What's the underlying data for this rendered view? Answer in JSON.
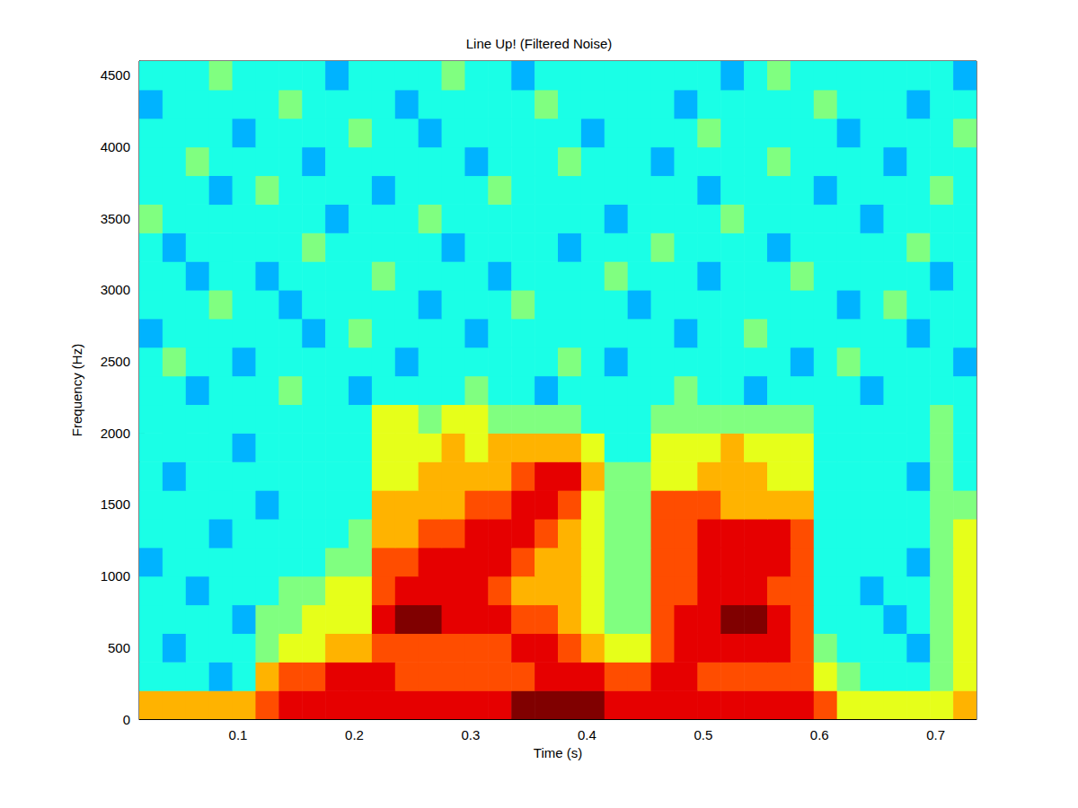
{
  "chart_data": {
    "type": "heatmap",
    "title": "Line Up! (Filtered Noise)",
    "xlabel": "Time (s)",
    "ylabel": "Frequency (Hz)",
    "x": [
      0.025,
      0.045,
      0.065,
      0.085,
      0.105,
      0.125,
      0.145,
      0.165,
      0.185,
      0.205,
      0.225,
      0.245,
      0.265,
      0.285,
      0.305,
      0.325,
      0.345,
      0.365,
      0.385,
      0.405,
      0.425,
      0.445,
      0.465,
      0.485,
      0.505,
      0.525,
      0.545,
      0.565,
      0.585,
      0.605,
      0.625,
      0.645,
      0.665,
      0.685,
      0.705,
      0.725
    ],
    "y": [
      100,
      300,
      500,
      700,
      900,
      1100,
      1300,
      1500,
      1700,
      1900,
      2100,
      2300,
      2500,
      2700,
      2900,
      3100,
      3300,
      3500,
      3700,
      3900,
      4100,
      4300,
      4500
    ],
    "cells": [
      [
        7,
        7,
        7,
        7,
        7,
        8,
        9,
        9,
        9,
        9,
        9,
        9,
        9,
        9,
        9,
        9,
        10,
        10,
        10,
        10,
        9,
        9,
        9,
        9,
        9,
        9,
        9,
        9,
        9,
        8,
        6,
        6,
        6,
        6,
        6,
        7
      ],
      [
        4,
        4,
        4,
        3,
        4,
        7,
        8,
        8,
        9,
        9,
        9,
        8,
        8,
        8,
        8,
        8,
        8,
        9,
        9,
        9,
        8,
        8,
        9,
        9,
        8,
        8,
        8,
        8,
        8,
        6,
        5,
        4,
        4,
        4,
        5,
        6
      ],
      [
        4,
        3,
        4,
        4,
        4,
        5,
        6,
        6,
        7,
        7,
        8,
        8,
        8,
        8,
        8,
        8,
        9,
        9,
        8,
        7,
        6,
        6,
        8,
        9,
        9,
        9,
        9,
        9,
        8,
        5,
        4,
        4,
        4,
        3,
        5,
        6
      ],
      [
        4,
        4,
        4,
        4,
        3,
        5,
        5,
        6,
        6,
        6,
        9,
        10,
        10,
        9,
        9,
        9,
        8,
        8,
        7,
        6,
        5,
        5,
        8,
        9,
        9,
        10,
        10,
        9,
        8,
        4,
        4,
        4,
        3,
        4,
        5,
        6
      ],
      [
        4,
        4,
        3,
        4,
        4,
        4,
        5,
        5,
        6,
        6,
        8,
        9,
        9,
        9,
        9,
        8,
        7,
        7,
        7,
        6,
        5,
        5,
        8,
        8,
        9,
        9,
        9,
        8,
        8,
        4,
        4,
        3,
        4,
        4,
        5,
        6
      ],
      [
        3,
        4,
        4,
        4,
        4,
        4,
        4,
        4,
        5,
        5,
        8,
        8,
        9,
        9,
        9,
        9,
        8,
        7,
        7,
        6,
        5,
        5,
        8,
        8,
        9,
        9,
        9,
        9,
        8,
        4,
        4,
        4,
        4,
        3,
        5,
        6
      ],
      [
        4,
        4,
        4,
        3,
        4,
        4,
        4,
        4,
        4,
        5,
        7,
        7,
        8,
        8,
        9,
        9,
        9,
        8,
        7,
        6,
        5,
        5,
        8,
        8,
        9,
        9,
        9,
        9,
        8,
        4,
        4,
        4,
        4,
        4,
        5,
        6
      ],
      [
        4,
        4,
        4,
        4,
        4,
        3,
        4,
        4,
        4,
        4,
        7,
        7,
        7,
        7,
        8,
        8,
        9,
        9,
        8,
        6,
        5,
        5,
        8,
        8,
        8,
        7,
        7,
        7,
        7,
        4,
        4,
        4,
        4,
        4,
        5,
        5
      ],
      [
        4,
        3,
        4,
        4,
        4,
        4,
        4,
        4,
        4,
        4,
        6,
        6,
        7,
        7,
        7,
        7,
        8,
        9,
        9,
        7,
        5,
        5,
        6,
        6,
        7,
        7,
        7,
        6,
        6,
        4,
        4,
        4,
        4,
        3,
        5,
        4
      ],
      [
        4,
        4,
        4,
        4,
        3,
        4,
        4,
        4,
        4,
        4,
        6,
        6,
        6,
        7,
        6,
        7,
        7,
        7,
        7,
        6,
        4,
        4,
        6,
        6,
        6,
        7,
        6,
        6,
        6,
        4,
        4,
        4,
        4,
        4,
        5,
        4
      ],
      [
        4,
        4,
        4,
        4,
        4,
        4,
        4,
        4,
        4,
        4,
        6,
        6,
        5,
        6,
        6,
        5,
        5,
        5,
        5,
        4,
        4,
        4,
        5,
        5,
        5,
        5,
        5,
        5,
        5,
        4,
        4,
        4,
        4,
        4,
        5,
        4
      ],
      [
        4,
        4,
        3,
        4,
        4,
        4,
        5,
        4,
        4,
        3,
        4,
        4,
        4,
        4,
        5,
        4,
        4,
        3,
        4,
        4,
        4,
        4,
        4,
        5,
        4,
        4,
        3,
        4,
        4,
        4,
        4,
        3,
        4,
        4,
        4,
        4
      ],
      [
        4,
        5,
        4,
        4,
        3,
        4,
        4,
        4,
        4,
        4,
        4,
        3,
        4,
        4,
        4,
        4,
        4,
        4,
        5,
        4,
        3,
        4,
        4,
        4,
        4,
        4,
        4,
        4,
        3,
        4,
        5,
        4,
        4,
        4,
        4,
        3
      ],
      [
        3,
        4,
        4,
        4,
        4,
        4,
        4,
        3,
        4,
        5,
        4,
        4,
        4,
        4,
        3,
        4,
        4,
        4,
        4,
        4,
        4,
        4,
        4,
        3,
        4,
        4,
        5,
        4,
        4,
        4,
        4,
        4,
        4,
        3,
        4,
        4
      ],
      [
        4,
        4,
        4,
        5,
        4,
        4,
        3,
        4,
        4,
        4,
        4,
        4,
        3,
        4,
        4,
        4,
        5,
        4,
        4,
        4,
        4,
        3,
        4,
        4,
        4,
        4,
        4,
        4,
        4,
        4,
        3,
        4,
        5,
        4,
        4,
        4
      ],
      [
        4,
        4,
        3,
        4,
        4,
        3,
        4,
        4,
        4,
        4,
        5,
        4,
        4,
        4,
        4,
        3,
        4,
        4,
        4,
        4,
        5,
        4,
        4,
        4,
        3,
        4,
        4,
        4,
        5,
        4,
        4,
        4,
        4,
        4,
        3,
        4
      ],
      [
        4,
        3,
        4,
        4,
        4,
        4,
        4,
        5,
        4,
        4,
        4,
        4,
        4,
        3,
        4,
        4,
        4,
        4,
        3,
        4,
        4,
        4,
        5,
        4,
        4,
        4,
        4,
        3,
        4,
        4,
        4,
        4,
        4,
        5,
        4,
        4
      ],
      [
        5,
        4,
        4,
        4,
        4,
        4,
        4,
        4,
        3,
        4,
        4,
        4,
        5,
        4,
        4,
        4,
        4,
        4,
        4,
        4,
        3,
        4,
        4,
        4,
        4,
        5,
        4,
        4,
        4,
        4,
        4,
        3,
        4,
        4,
        4,
        4
      ],
      [
        4,
        4,
        4,
        3,
        4,
        5,
        4,
        4,
        4,
        4,
        3,
        4,
        4,
        4,
        4,
        5,
        4,
        4,
        4,
        4,
        4,
        4,
        4,
        4,
        3,
        4,
        4,
        4,
        4,
        3,
        4,
        4,
        4,
        4,
        5,
        4
      ],
      [
        4,
        4,
        5,
        4,
        4,
        4,
        4,
        3,
        4,
        4,
        4,
        4,
        4,
        4,
        3,
        4,
        4,
        4,
        5,
        4,
        4,
        4,
        3,
        4,
        4,
        4,
        4,
        5,
        4,
        4,
        4,
        4,
        3,
        4,
        4,
        4
      ],
      [
        4,
        4,
        4,
        4,
        3,
        4,
        4,
        4,
        4,
        5,
        4,
        4,
        3,
        4,
        4,
        4,
        4,
        4,
        4,
        3,
        4,
        4,
        4,
        4,
        5,
        4,
        4,
        4,
        4,
        4,
        3,
        4,
        4,
        4,
        4,
        5
      ],
      [
        3,
        4,
        4,
        4,
        4,
        4,
        5,
        4,
        4,
        4,
        4,
        3,
        4,
        4,
        4,
        4,
        4,
        5,
        4,
        4,
        4,
        4,
        4,
        3,
        4,
        4,
        4,
        4,
        4,
        5,
        4,
        4,
        4,
        3,
        4,
        4
      ],
      [
        4,
        4,
        4,
        5,
        4,
        4,
        4,
        4,
        3,
        4,
        4,
        4,
        4,
        5,
        4,
        4,
        3,
        4,
        4,
        4,
        4,
        4,
        4,
        4,
        4,
        3,
        4,
        5,
        4,
        4,
        4,
        4,
        4,
        4,
        4,
        3
      ]
    ],
    "zlim": [
      0,
      10
    ],
    "xlim": [
      0.015,
      0.735
    ],
    "xticks": [
      0.1,
      0.2,
      0.3,
      0.4,
      0.5,
      0.6,
      0.7
    ],
    "ylim": [
      0,
      4600
    ],
    "yticks": [
      0,
      500,
      1000,
      1500,
      2000,
      2500,
      3000,
      3500,
      4000,
      4500
    ]
  }
}
